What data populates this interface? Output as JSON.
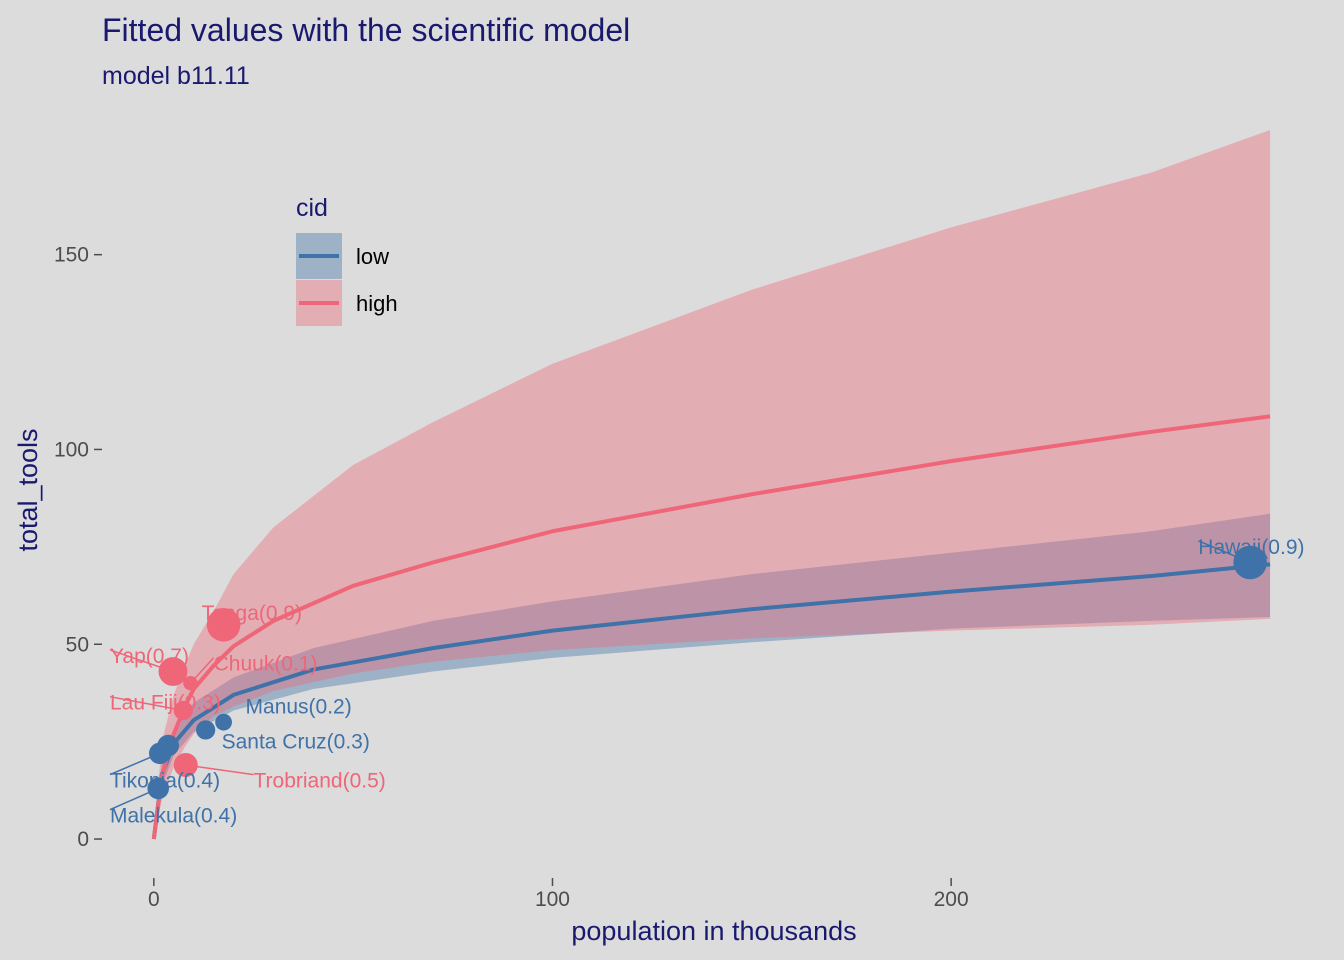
{
  "colors": {
    "background": "#dcdcdc",
    "low": "#3f72a8",
    "high": "#ee6677",
    "text": "#191970",
    "tick": "#4d4d4d"
  },
  "chart_data": {
    "type": "line",
    "title": "Fitted values with the scientific model",
    "subtitle": "model b11.11",
    "xlabel": "population in thousands",
    "ylabel": "total_tools",
    "xlim": [
      -13,
      285
    ],
    "ylim": [
      -10,
      182
    ],
    "xticks": [
      0,
      100,
      200
    ],
    "yticks": [
      0,
      50,
      100,
      150
    ],
    "grid": false,
    "legend": {
      "title": "cid",
      "position": "top-left",
      "entries": [
        {
          "key": "low",
          "label": "low"
        },
        {
          "key": "high",
          "label": "high"
        }
      ]
    },
    "series": [
      {
        "name": "low",
        "x": [
          0,
          2,
          5,
          10,
          20,
          40,
          70,
          100,
          150,
          200,
          250,
          280
        ],
        "fit": [
          0,
          16.5,
          24.5,
          30.5,
          37,
          43.5,
          49,
          53.5,
          59,
          63.5,
          67.5,
          70.5
        ],
        "lower": [
          0,
          13.5,
          21.5,
          27.5,
          33,
          38.5,
          43,
          46.5,
          50.5,
          54,
          56,
          57
        ],
        "upper": [
          0,
          19,
          28,
          35,
          41.5,
          49,
          56,
          61,
          68,
          73.5,
          79,
          83.5
        ]
      },
      {
        "name": "high",
        "x": [
          0,
          2,
          5,
          8,
          10,
          15,
          20,
          30,
          50,
          70,
          100,
          150,
          200,
          250,
          280
        ],
        "fit": [
          0,
          16,
          27,
          34.5,
          38.5,
          44.5,
          49.5,
          56,
          65,
          71,
          79,
          88.5,
          97,
          104.5,
          108.5
        ],
        "lower": [
          0,
          10,
          18.5,
          24,
          27,
          31.5,
          34,
          38,
          42.5,
          45.5,
          48.5,
          51.5,
          53.5,
          55,
          56.5
        ],
        "upper": [
          0,
          25,
          37,
          45,
          50,
          58.5,
          68,
          80,
          96,
          107,
          122,
          141,
          157,
          171,
          182
        ]
      }
    ],
    "points": [
      {
        "x": 1.1,
        "y": 13,
        "cid": "low",
        "size": 0.4,
        "label": "Malekula(0.4)",
        "lx": -11,
        "ly": 6
      },
      {
        "x": 1.5,
        "y": 22,
        "cid": "low",
        "size": 0.4,
        "label": "Tikopia(0.4)",
        "lx": -11,
        "ly": 15
      },
      {
        "x": 3.6,
        "y": 24,
        "cid": "low",
        "size": 0.4,
        "label": "",
        "lx": null,
        "ly": null
      },
      {
        "x": 4.8,
        "y": 43,
        "cid": "high",
        "size": 0.7,
        "label": "Yap(0.7)",
        "lx": -11,
        "ly": 47
      },
      {
        "x": 7.4,
        "y": 33,
        "cid": "high",
        "size": 0.3,
        "label": "Lau Fiji(0.3)",
        "lx": -11,
        "ly": 35
      },
      {
        "x": 8.0,
        "y": 19,
        "cid": "high",
        "size": 0.5,
        "label": "Trobriand(0.5)",
        "lx": 25,
        "ly": 15
      },
      {
        "x": 9.2,
        "y": 40,
        "cid": "high",
        "size": 0.1,
        "label": "Chuuk(0.1)",
        "lx": 15,
        "ly": 45
      },
      {
        "x": 13,
        "y": 28,
        "cid": "low",
        "size": 0.3,
        "label": "Santa Cruz(0.3)",
        "lx": 17,
        "ly": 25
      },
      {
        "x": 17.5,
        "y": 55,
        "cid": "high",
        "size": 0.9,
        "label": "Tonga(0.9)",
        "lx": 12,
        "ly": 58
      },
      {
        "x": 17.5,
        "y": 30,
        "cid": "low",
        "size": 0.2,
        "label": "Manus(0.2)",
        "lx": 23,
        "ly": 34
      },
      {
        "x": 275,
        "y": 71,
        "cid": "low",
        "size": 0.9,
        "label": "Hawaii(0.9)",
        "lx": 262,
        "ly": 75
      }
    ]
  }
}
